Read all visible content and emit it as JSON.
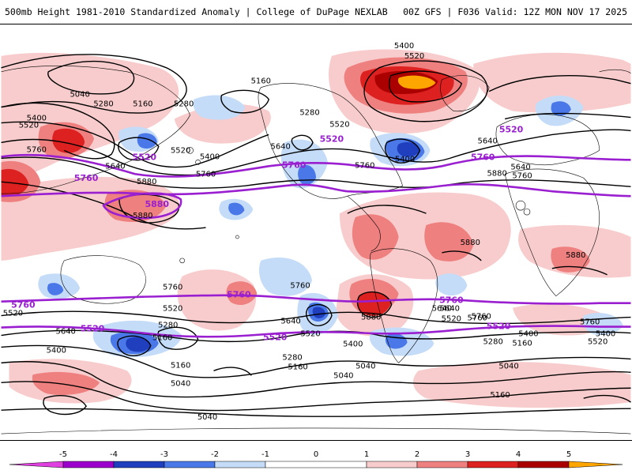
{
  "header": {
    "title": "500mb Height 1981-2010 Standardized Anomaly | College of DuPage NEXLAB",
    "run_info": "00Z GFS | F036 Valid: 12Z MON NOV 17 2025"
  },
  "colors": {
    "c_neg5": "#e040e0",
    "c_neg4": "#9b00cc",
    "c_neg3": "#1f3fbf",
    "c_neg2": "#4a78e8",
    "c_neg1": "#c4dcf7",
    "c_pos1": "#f8cccc",
    "c_pos2": "#ef8080",
    "c_pos3": "#dd2020",
    "c_pos4": "#aa0000",
    "c_pos5": "#ffa500",
    "contour": "#000000",
    "highlight": "#9a1fd0"
  },
  "colorbar": {
    "ticks": [
      "-5",
      "-4",
      "-3",
      "-2",
      "-1",
      "0",
      "1",
      "2",
      "3",
      "4",
      "5"
    ]
  },
  "contours": {
    "c5040_a": "5040",
    "c5160_a": "5160",
    "c5280_a": "5280",
    "c5400_a": "5400",
    "c5520_a": "5520",
    "c5640_a": "5640",
    "c5760_a": "5760",
    "c5880_a": "5880",
    "c5160_b": "5160",
    "c5280_b": "5280",
    "c5280_c": "5280",
    "c5520_b": "5520",
    "c5400_b": "5400",
    "c5640_b": "5640",
    "c5760_b": "5760",
    "c5520_c": "5520",
    "c5400_c": "5400",
    "c5520_d": "5520",
    "c5640_c": "5640",
    "c5760_c": "5760",
    "c5400_d": "5400",
    "c5880_b": "5880",
    "c5880_c": "5880",
    "c5880_d": "5880",
    "c5640_d": "5640",
    "c5760_d": "5760",
    "c5880_e": "5880",
    "s5760_a": "5760",
    "s5520_a": "5520",
    "s5640_a": "5640",
    "s5400_a": "5400",
    "s5280_a": "5280",
    "s5160_a": "5160",
    "s5040_a": "5040",
    "s5760_b": "5760",
    "s5640_b": "5640",
    "s5520_b": "5520",
    "s5400_b": "5400",
    "s5280_b": "5280",
    "s5160_b": "5160",
    "s5040_b": "5040",
    "s5760_c": "5760",
    "s5640_c": "5640",
    "s5520_c": "5520",
    "s5400_c": "5400",
    "s5280_c": "5280",
    "s5160_c": "5160",
    "s5040_c": "5040",
    "s5880_a": "5880",
    "s5760_d": "5760",
    "s5520_d": "5520",
    "s5400_d": "5400",
    "s5160_d": "5160",
    "s5040_d": "5040",
    "s5520_e": "5520",
    "s5640_d": "5640",
    "s5760_e": "5760",
    "s5040_e": "5040",
    "s5160_e": "5160"
  },
  "highlights": {
    "h5520_n1": "5520",
    "h5520_n2": "5520",
    "h5520_n3": "5520",
    "h5760_n1": "5760",
    "h5760_n2": "5760",
    "h5760_n3": "5760",
    "h5880_n1": "5880",
    "h5760_s1": "5760",
    "h5760_s2": "5760",
    "h5760_s3": "5760",
    "h5520_s1": "5520",
    "h5520_s2": "5520",
    "h5520_s3": "5520"
  }
}
